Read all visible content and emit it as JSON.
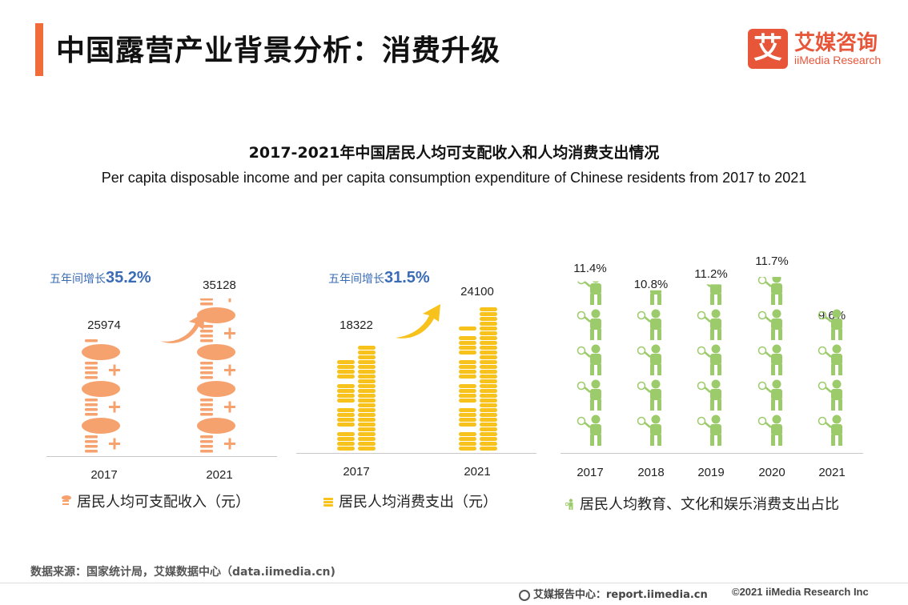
{
  "header": {
    "title": "中国露营产业背景分析：消费升级",
    "logo_mark": "艾",
    "logo_cn": "艾媒咨询",
    "logo_en": "iiMedia Research"
  },
  "chart_heading": {
    "cn": "2017-2021年中国居民人均可支配收入和人均消费支出情况",
    "en": "Per capita disposable income and per capita consumption expenditure of Chinese residents from 2017 to 2021"
  },
  "colors": {
    "income": "#f6a26f",
    "expenditure": "#f6c21b",
    "education": "#9ccb6b",
    "accent": "#f06d3b",
    "growth_text": "#3a6cb5"
  },
  "chart_data": [
    {
      "type": "bar",
      "categories": [
        "2017",
        "2021"
      ],
      "values": [
        25974,
        35128
      ],
      "value_labels": [
        "25974",
        "35128"
      ],
      "growth_prefix": "五年间增长",
      "growth_value": "35.2%",
      "legend": "居民人均可支配收入（元）",
      "icon": "money-bag-icon"
    },
    {
      "type": "bar",
      "categories": [
        "2017",
        "2021"
      ],
      "values": [
        18322,
        24100
      ],
      "value_labels": [
        "18322",
        "24100"
      ],
      "growth_prefix": "五年间增长",
      "growth_value": "31.5%",
      "legend": "居民人均消费支出（元）",
      "icon": "coin-stack-icon"
    },
    {
      "type": "bar",
      "categories": [
        "2017",
        "2018",
        "2019",
        "2020",
        "2021"
      ],
      "values": [
        11.4,
        10.8,
        11.2,
        11.7,
        9.6
      ],
      "value_labels": [
        "11.4%",
        "10.8%",
        "11.2%",
        "11.7%",
        "9.6%"
      ],
      "legend": "居民人均教育、文化和娱乐消费支出占比",
      "icon": "tennis-player-icon"
    }
  ],
  "source": "数据来源：国家统计局，艾媒数据中心（data.iimedia.cn)",
  "footer": {
    "left": "艾媒报告中心：report.iimedia.cn",
    "right": "©2021  iiMedia Research  Inc"
  }
}
